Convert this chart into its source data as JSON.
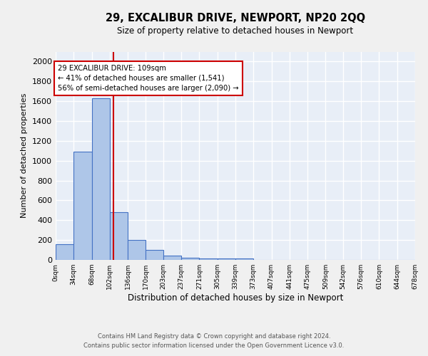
{
  "title": "29, EXCALIBUR DRIVE, NEWPORT, NP20 2QQ",
  "subtitle": "Size of property relative to detached houses in Newport",
  "xlabel": "Distribution of detached houses by size in Newport",
  "ylabel": "Number of detached properties",
  "bin_edges": [
    0,
    34,
    68,
    102,
    136,
    170,
    203,
    237,
    271,
    305,
    339,
    373,
    407,
    441,
    475,
    509,
    542,
    576,
    610,
    644,
    678
  ],
  "bar_heights": [
    160,
    1090,
    1630,
    480,
    200,
    100,
    40,
    25,
    15,
    15,
    15,
    0,
    0,
    0,
    0,
    0,
    0,
    0,
    0,
    0
  ],
  "bar_color": "#aec6e8",
  "bar_edge_color": "#4472c4",
  "property_size": 109,
  "vline_color": "#cc0000",
  "annotation_text": "29 EXCALIBUR DRIVE: 109sqm\n← 41% of detached houses are smaller (1,541)\n56% of semi-detached houses are larger (2,090) →",
  "annotation_box_color": "#ffffff",
  "annotation_box_edge": "#cc0000",
  "ylim": [
    0,
    2100
  ],
  "yticks": [
    0,
    200,
    400,
    600,
    800,
    1000,
    1200,
    1400,
    1600,
    1800,
    2000
  ],
  "bg_color": "#e8eef7",
  "grid_color": "#ffffff",
  "footer_line1": "Contains HM Land Registry data © Crown copyright and database right 2024.",
  "footer_line2": "Contains public sector information licensed under the Open Government Licence v3.0."
}
